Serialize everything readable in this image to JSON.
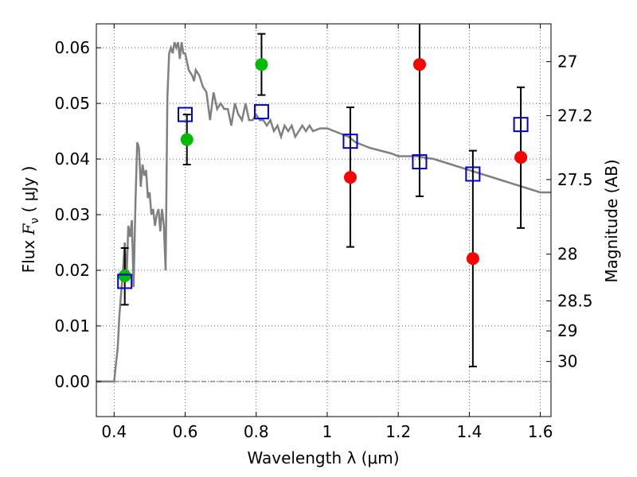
{
  "chart_data": {
    "type": "scatter",
    "xlabel": "Wavelength  λ (μm)",
    "ylabel": "Flux  F_ν  ( μJy )",
    "ylabel_parts": {
      "prefix": "Flux  ",
      "symbol": "F",
      "subscript": "ν",
      "suffix": "  ( μJy )"
    },
    "y2label": "Magnitude (AB)",
    "xlim": [
      0.35,
      1.63
    ],
    "ylim": [
      -0.0063,
      0.0643
    ],
    "grid": true,
    "x_ticks": [
      0.4,
      0.6,
      0.8,
      1.0,
      1.2,
      1.4,
      1.6
    ],
    "x_tick_labels": [
      "0.4",
      "0.6",
      "0.8",
      "1",
      "1.2",
      "1.4",
      "1.6"
    ],
    "y_ticks": [
      0.0,
      0.01,
      0.02,
      0.03,
      0.04,
      0.05,
      0.06
    ],
    "y_tick_labels": [
      "0.00",
      "0.01",
      "0.02",
      "0.03",
      "0.04",
      "0.05",
      "0.06"
    ],
    "y2_ticks": [
      {
        "label": "27",
        "flux": 0.0575
      },
      {
        "label": "27.2",
        "flux": 0.0478
      },
      {
        "label": "27.5",
        "flux": 0.0363
      },
      {
        "label": "28",
        "flux": 0.0229
      },
      {
        "label": "28.5",
        "flux": 0.0145
      },
      {
        "label": "29",
        "flux": 0.0091
      },
      {
        "label": "30",
        "flux": 0.0036
      }
    ],
    "model_spectrum": {
      "color": "#808080",
      "x": [
        0.35,
        0.4,
        0.405,
        0.41,
        0.415,
        0.42,
        0.425,
        0.43,
        0.435,
        0.44,
        0.445,
        0.45,
        0.455,
        0.46,
        0.465,
        0.47,
        0.475,
        0.48,
        0.485,
        0.49,
        0.495,
        0.5,
        0.505,
        0.51,
        0.515,
        0.52,
        0.525,
        0.53,
        0.535,
        0.54,
        0.545,
        0.55,
        0.555,
        0.56,
        0.565,
        0.57,
        0.575,
        0.58,
        0.585,
        0.59,
        0.595,
        0.6,
        0.61,
        0.62,
        0.625,
        0.63,
        0.64,
        0.65,
        0.66,
        0.67,
        0.68,
        0.69,
        0.7,
        0.71,
        0.72,
        0.73,
        0.74,
        0.75,
        0.76,
        0.77,
        0.78,
        0.79,
        0.8,
        0.81,
        0.82,
        0.83,
        0.84,
        0.85,
        0.86,
        0.87,
        0.88,
        0.89,
        0.9,
        0.91,
        0.92,
        0.93,
        0.94,
        0.95,
        0.96,
        0.98,
        1.0,
        1.02,
        1.04,
        1.06,
        1.08,
        1.1,
        1.12,
        1.15,
        1.18,
        1.2,
        1.25,
        1.3,
        1.35,
        1.4,
        1.45,
        1.5,
        1.55,
        1.6,
        1.63
      ],
      "y": [
        0.0,
        0.0,
        0.003,
        0.006,
        0.012,
        0.016,
        0.02,
        0.025,
        0.018,
        0.028,
        0.026,
        0.029,
        0.017,
        0.032,
        0.043,
        0.042,
        0.035,
        0.039,
        0.037,
        0.038,
        0.033,
        0.034,
        0.03,
        0.031,
        0.028,
        0.03,
        0.031,
        0.027,
        0.031,
        0.028,
        0.02,
        0.051,
        0.059,
        0.06,
        0.059,
        0.061,
        0.06,
        0.061,
        0.058,
        0.061,
        0.059,
        0.059,
        0.056,
        0.055,
        0.054,
        0.056,
        0.055,
        0.053,
        0.052,
        0.047,
        0.052,
        0.049,
        0.05,
        0.049,
        0.049,
        0.046,
        0.05,
        0.048,
        0.047,
        0.05,
        0.047,
        0.047,
        0.048,
        0.047,
        0.047,
        0.046,
        0.047,
        0.045,
        0.046,
        0.044,
        0.046,
        0.045,
        0.046,
        0.044,
        0.045,
        0.046,
        0.045,
        0.046,
        0.045,
        0.0455,
        0.0455,
        0.045,
        0.0445,
        0.044,
        0.043,
        0.0425,
        0.042,
        0.0415,
        0.041,
        0.0405,
        0.0405,
        0.04,
        0.039,
        0.038,
        0.037,
        0.036,
        0.035,
        0.034,
        0.034
      ]
    },
    "series": [
      {
        "marker": "circle",
        "color": "#00bb00",
        "x": [
          0.43,
          0.605,
          0.815
        ],
        "y": [
          0.019,
          0.0435,
          0.057
        ]
      },
      {
        "marker": "circle",
        "color": "#ff0000",
        "x": [
          1.065,
          1.26,
          1.41,
          1.545
        ],
        "y": [
          0.0367,
          0.057,
          0.0221,
          0.0403
        ]
      },
      {
        "marker": "open-square",
        "color": "#0000cc",
        "x": [
          0.43,
          0.6,
          0.815,
          1.065,
          1.26,
          1.41,
          1.545
        ],
        "y": [
          0.018,
          0.048,
          0.0485,
          0.0432,
          0.0395,
          0.0373,
          0.0462
        ]
      }
    ],
    "error_bars": [
      {
        "x": 0.43,
        "low": 0.0138,
        "high": 0.024
      },
      {
        "x": 0.605,
        "low": 0.039,
        "high": 0.048
      },
      {
        "x": 0.815,
        "low": 0.0515,
        "high": 0.0625
      },
      {
        "x": 1.065,
        "low": 0.0242,
        "high": 0.0493
      },
      {
        "x": 1.26,
        "low": 0.0333,
        "high": 0.0645
      },
      {
        "x": 1.41,
        "low": 0.0027,
        "high": 0.0415
      },
      {
        "x": 1.545,
        "low": 0.0276,
        "high": 0.0529
      }
    ]
  }
}
